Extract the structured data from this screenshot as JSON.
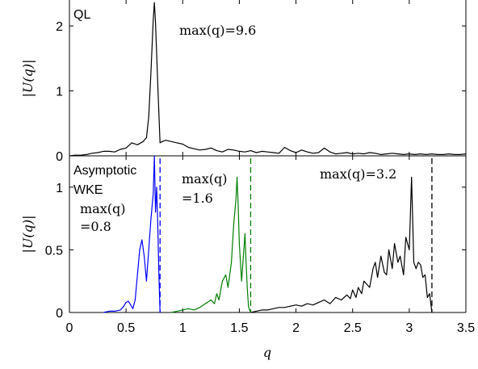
{
  "chart_data": [
    {
      "type": "line",
      "panel_label": "QL",
      "ylabel": "|U(q)|",
      "xlim": [
        0,
        3.5
      ],
      "ylim": [
        0,
        2.4
      ],
      "yticks": [
        "0",
        "1",
        "2"
      ],
      "annotations": [
        {
          "text": "max(q)=9.6",
          "color": "#000000"
        }
      ],
      "series": [
        {
          "color": "#000000",
          "x": [
            0.0,
            0.05,
            0.1,
            0.15,
            0.2,
            0.25,
            0.3,
            0.35,
            0.4,
            0.45,
            0.5,
            0.55,
            0.6,
            0.65,
            0.68,
            0.7,
            0.72,
            0.74,
            0.75,
            0.76,
            0.78,
            0.8,
            0.82,
            0.85,
            0.9,
            0.95,
            1.0,
            1.05,
            1.1,
            1.15,
            1.2,
            1.25,
            1.3,
            1.35,
            1.4,
            1.45,
            1.5,
            1.55,
            1.6,
            1.65,
            1.7,
            1.75,
            1.8,
            1.85,
            1.9,
            1.95,
            2.0,
            2.05,
            2.1,
            2.15,
            2.2,
            2.25,
            2.3,
            2.35,
            2.4,
            2.45,
            2.5,
            2.55,
            2.6,
            2.65,
            2.7,
            2.75,
            2.8,
            2.85,
            2.9,
            2.95,
            3.0,
            3.05,
            3.1,
            3.15,
            3.2,
            3.25,
            3.3,
            3.35,
            3.4,
            3.45,
            3.5
          ],
          "y": [
            0.0,
            0.01,
            0.01,
            0.02,
            0.04,
            0.05,
            0.07,
            0.07,
            0.06,
            0.1,
            0.12,
            0.2,
            0.17,
            0.22,
            0.28,
            0.6,
            1.3,
            2.1,
            2.36,
            2.05,
            1.1,
            0.2,
            0.22,
            0.24,
            0.22,
            0.2,
            0.18,
            0.13,
            0.11,
            0.09,
            0.1,
            0.12,
            0.08,
            0.06,
            0.1,
            0.09,
            0.07,
            0.06,
            0.08,
            0.05,
            0.07,
            0.06,
            0.05,
            0.04,
            0.13,
            0.08,
            0.05,
            0.09,
            0.06,
            0.04,
            0.05,
            0.12,
            0.06,
            0.03,
            0.04,
            0.05,
            0.03,
            0.04,
            0.03,
            0.05,
            0.04,
            0.02,
            0.03,
            0.04,
            0.03,
            0.02,
            0.03,
            0.02,
            0.03,
            0.02,
            0.03,
            0.02,
            0.02,
            0.03,
            0.02,
            0.02,
            0.03
          ]
        }
      ]
    },
    {
      "type": "line",
      "panel_label": [
        "Asymptotic",
        "WKE"
      ],
      "xlabel": "q",
      "ylabel": "|U(q)|",
      "xlim": [
        0,
        3.5
      ],
      "ylim": [
        0,
        1.25
      ],
      "xticks": [
        "0",
        "0.5",
        "1",
        "1.5",
        "2",
        "2.5",
        "3",
        "3.5"
      ],
      "yticks": [
        "0",
        "0.5",
        "1"
      ],
      "annotations": [
        {
          "text": [
            "max(q)",
            "=0.8"
          ],
          "color": "#0000ff"
        },
        {
          "text": [
            "max(q)",
            "=1.6"
          ],
          "color": "#008000"
        },
        {
          "text": "max(q)=3.2",
          "color": "#000000"
        }
      ],
      "cutoffs": [
        {
          "x": 0.8,
          "color": "#0000ff"
        },
        {
          "x": 1.6,
          "color": "#008000"
        },
        {
          "x": 3.2,
          "color": "#000000"
        }
      ],
      "series": [
        {
          "color": "#0000ff",
          "x": [
            0.3,
            0.35,
            0.4,
            0.45,
            0.48,
            0.5,
            0.52,
            0.54,
            0.56,
            0.58,
            0.6,
            0.62,
            0.64,
            0.66,
            0.68,
            0.7,
            0.72,
            0.74,
            0.75,
            0.76,
            0.77,
            0.78,
            0.79,
            0.8
          ],
          "y": [
            0.0,
            0.01,
            0.01,
            0.02,
            0.05,
            0.08,
            0.09,
            0.06,
            0.03,
            0.1,
            0.3,
            0.5,
            0.58,
            0.45,
            0.25,
            0.5,
            0.75,
            0.95,
            1.25,
            0.8,
            1.0,
            0.7,
            0.3,
            0.0
          ]
        },
        {
          "color": "#008000",
          "x": [
            0.9,
            0.95,
            1.0,
            1.05,
            1.1,
            1.15,
            1.2,
            1.25,
            1.28,
            1.3,
            1.32,
            1.35,
            1.38,
            1.4,
            1.43,
            1.45,
            1.47,
            1.48,
            1.49,
            1.5,
            1.52,
            1.54,
            1.55,
            1.56,
            1.57,
            1.58,
            1.59,
            1.6
          ],
          "y": [
            0.0,
            0.01,
            0.02,
            0.03,
            0.02,
            0.04,
            0.07,
            0.1,
            0.07,
            0.15,
            0.1,
            0.25,
            0.3,
            0.2,
            0.4,
            0.7,
            0.9,
            1.08,
            0.85,
            0.55,
            0.25,
            0.5,
            0.63,
            0.4,
            0.2,
            0.05,
            0.02,
            0.0
          ]
        },
        {
          "color": "#000000",
          "x": [
            1.6,
            1.65,
            1.7,
            1.75,
            1.8,
            1.85,
            1.9,
            1.95,
            2.0,
            2.05,
            2.1,
            2.15,
            2.2,
            2.25,
            2.3,
            2.35,
            2.4,
            2.45,
            2.48,
            2.5,
            2.53,
            2.55,
            2.58,
            2.6,
            2.63,
            2.65,
            2.68,
            2.7,
            2.72,
            2.75,
            2.78,
            2.8,
            2.82,
            2.85,
            2.87,
            2.9,
            2.92,
            2.95,
            2.97,
            3.0,
            3.02,
            3.04,
            3.06,
            3.08,
            3.1,
            3.12,
            3.14,
            3.16,
            3.18,
            3.2
          ],
          "y": [
            0.0,
            0.01,
            0.02,
            0.02,
            0.03,
            0.04,
            0.04,
            0.05,
            0.06,
            0.05,
            0.07,
            0.06,
            0.08,
            0.1,
            0.07,
            0.12,
            0.1,
            0.14,
            0.11,
            0.18,
            0.12,
            0.2,
            0.15,
            0.25,
            0.22,
            0.2,
            0.35,
            0.4,
            0.28,
            0.45,
            0.32,
            0.3,
            0.5,
            0.35,
            0.55,
            0.4,
            0.45,
            0.3,
            0.6,
            0.5,
            1.08,
            0.4,
            0.35,
            0.4,
            0.38,
            0.28,
            0.3,
            0.12,
            0.15,
            0.0
          ]
        }
      ]
    }
  ]
}
